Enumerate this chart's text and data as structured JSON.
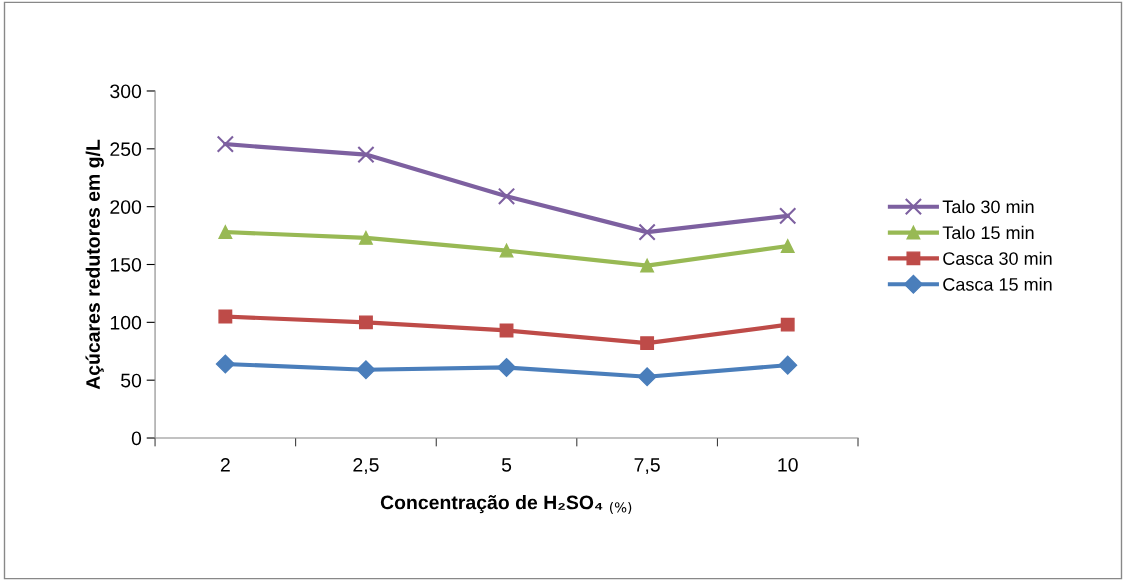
{
  "chart_data": {
    "type": "line",
    "xlabel": "Concentração de H₂SO₄ $_{(%)}$",
    "ylabel": "Açúcares redutores em g/L",
    "categories": [
      "2",
      "2,5",
      "5",
      "7,5",
      "10"
    ],
    "series": [
      {
        "name": "Talo 30 min",
        "color": "#7d60a0",
        "marker": "cross",
        "values": [
          254,
          245,
          209,
          178,
          192
        ]
      },
      {
        "name": "Talo 15 min",
        "color": "#98b954",
        "marker": "triangle",
        "values": [
          178,
          173,
          162,
          149,
          166
        ]
      },
      {
        "name": "Casca 30 min",
        "color": "#be4b48",
        "marker": "square",
        "values": [
          105,
          100,
          93,
          82,
          98
        ]
      },
      {
        "name": "Casca 15 min",
        "color": "#4a7ebb",
        "marker": "diamond",
        "values": [
          64,
          59,
          61,
          53,
          63
        ]
      }
    ],
    "ylim": [
      0,
      300
    ],
    "yticks": [
      0,
      50,
      100,
      150,
      200,
      250,
      300
    ],
    "grid": false,
    "legend": "right",
    "line_style": "solid"
  }
}
